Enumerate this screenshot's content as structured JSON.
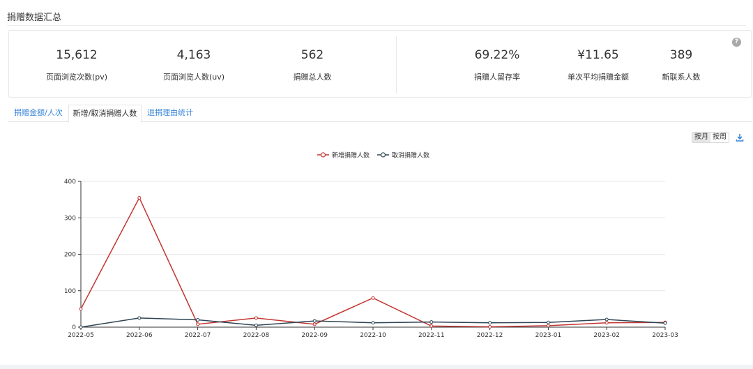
{
  "page": {
    "title": "捐赠数据汇总"
  },
  "summary": {
    "help_icon": "question-circle-icon",
    "stats": [
      {
        "value": "15,612",
        "label": "页面浏览次数(pv)"
      },
      {
        "value": "4,163",
        "label": "页面浏览人数(uv)"
      },
      {
        "value": "562",
        "label": "捐赠总人数"
      },
      {
        "value": "69.22%",
        "label": "捐赠人留存率"
      },
      {
        "value": "¥11.65",
        "label": "单次平均捐赠金额"
      },
      {
        "value": "389",
        "label": "新联系人数"
      }
    ]
  },
  "tabs": [
    {
      "label": "捐赠金额/人次",
      "active": false
    },
    {
      "label": "新增/取消捐赠人数",
      "active": true
    },
    {
      "label": "退捐理由统计",
      "active": false
    }
  ],
  "period_toggle": {
    "options": [
      "按月",
      "按周"
    ],
    "selected": "按月"
  },
  "toolbar": {
    "download_icon": "download-icon"
  },
  "colors": {
    "accent": "#3a86d9",
    "new_series": "#c23531",
    "cancel_series": "#2f4554"
  },
  "chart_data": {
    "type": "line",
    "title": "",
    "xlabel": "",
    "ylabel": "",
    "ylim": [
      0,
      400
    ],
    "yticks": [
      0,
      100,
      200,
      300,
      400
    ],
    "legend_position": "top-center",
    "grid": true,
    "x": [
      "2022-05",
      "2022-06",
      "2022-07",
      "2022-08",
      "2022-09",
      "2022-10",
      "2022-11",
      "2022-12",
      "2023-01",
      "2023-02",
      "2023-03"
    ],
    "series": [
      {
        "name": "新增捐赠人数",
        "color": "#c23531",
        "values": [
          50,
          355,
          8,
          25,
          8,
          80,
          3,
          1,
          4,
          12,
          13
        ]
      },
      {
        "name": "取消捐赠人数",
        "color": "#2f4554",
        "values": [
          0,
          25,
          20,
          5,
          17,
          12,
          14,
          12,
          13,
          21,
          11
        ]
      }
    ]
  }
}
